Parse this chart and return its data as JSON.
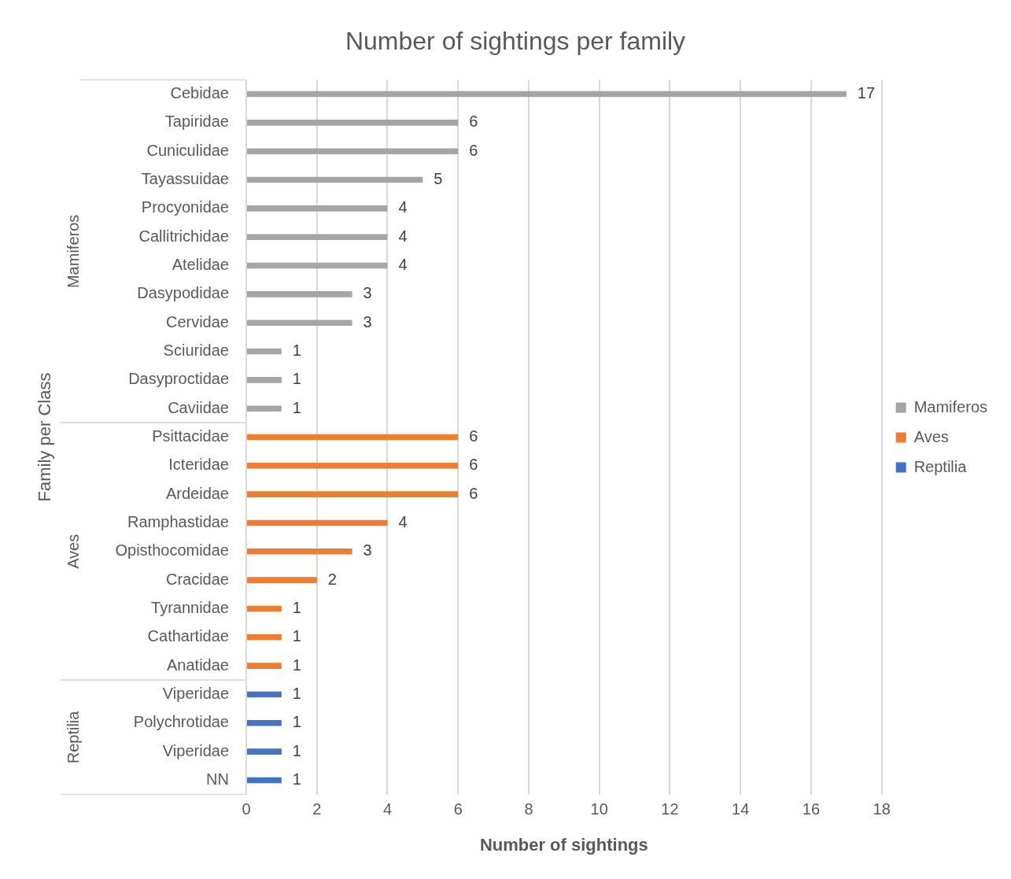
{
  "chart_data": {
    "type": "bar",
    "orientation": "horizontal",
    "title": "Number of sightings per family",
    "xlabel": "Number of sightings",
    "ylabel": "Family per Class",
    "categories": [
      "Cebidae",
      "Tapiridae",
      "Cuniculidae",
      "Tayassuidae",
      "Procyonidae",
      "Callitrichidae",
      "Atelidae",
      "Dasypodidae",
      "Cervidae",
      "Sciuridae",
      "Dasyproctidae",
      "Caviidae",
      "Psittacidae",
      "Icteridae",
      "Ardeidae",
      "Ramphastidae",
      "Opisthocomidae",
      "Cracidae",
      "Tyrannidae",
      "Cathartidae",
      "Anatidae",
      "Viperidae",
      "Polychrotidae",
      "Viperidae",
      "NN"
    ],
    "series": [
      {
        "name": "Mamiferos",
        "color": "#a5a5a5",
        "values": [
          17,
          6,
          6,
          5,
          4,
          4,
          4,
          3,
          3,
          1,
          1,
          1,
          null,
          null,
          null,
          null,
          null,
          null,
          null,
          null,
          null,
          null,
          null,
          null,
          null
        ]
      },
      {
        "name": "Aves",
        "color": "#ed7d31",
        "values": [
          null,
          null,
          null,
          null,
          null,
          null,
          null,
          null,
          null,
          null,
          null,
          null,
          6,
          6,
          6,
          4,
          3,
          2,
          1,
          1,
          1,
          null,
          null,
          null,
          null
        ]
      },
      {
        "name": "Reptilia",
        "color": "#4472c4",
        "values": [
          null,
          null,
          null,
          null,
          null,
          null,
          null,
          null,
          null,
          null,
          null,
          null,
          null,
          null,
          null,
          null,
          null,
          null,
          null,
          null,
          null,
          1,
          1,
          1,
          1
        ]
      }
    ],
    "xlim": [
      0,
      18
    ],
    "xticks": [
      0,
      2,
      4,
      6,
      8,
      10,
      12,
      14,
      16,
      18
    ],
    "grid": "x",
    "legend": "right",
    "data_labels": true
  }
}
